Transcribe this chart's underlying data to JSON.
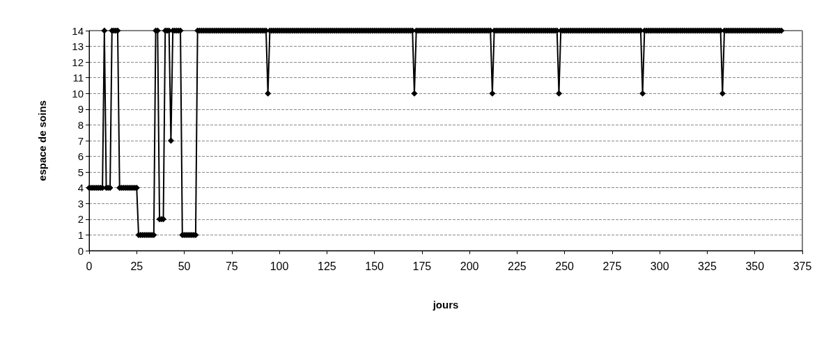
{
  "chart_data": {
    "type": "line",
    "xlabel": "jours",
    "ylabel": "espace de soins",
    "xlim": [
      0,
      375
    ],
    "xticks": [
      0,
      25,
      50,
      75,
      100,
      125,
      150,
      175,
      200,
      225,
      250,
      275,
      300,
      325,
      350,
      375
    ],
    "ylim": [
      0,
      14
    ],
    "yticks": [
      0,
      1,
      2,
      3,
      4,
      5,
      6,
      7,
      8,
      9,
      10,
      11,
      12,
      13,
      14
    ],
    "grid": "y",
    "marker": "diamond",
    "line_style": "solid",
    "series": [
      {
        "color": "#000000",
        "x": [
          0,
          1,
          2,
          3,
          4,
          5,
          6,
          7,
          8,
          9,
          10,
          11,
          12,
          13,
          14,
          15,
          16,
          17,
          18,
          19,
          20,
          21,
          22,
          23,
          24,
          25,
          26,
          27,
          28,
          29,
          30,
          31,
          32,
          33,
          34,
          35,
          36,
          37,
          38,
          39,
          40,
          41,
          42,
          43,
          44,
          45,
          46,
          47,
          48,
          49,
          50,
          51,
          52,
          53,
          54,
          55,
          56,
          57,
          58,
          59,
          60,
          61,
          62,
          63,
          64,
          65,
          66,
          67,
          68,
          69,
          70,
          71,
          72,
          73,
          74,
          75,
          76,
          77,
          78,
          79,
          80,
          81,
          82,
          83,
          84,
          85,
          86,
          87,
          88,
          89,
          90,
          91,
          92,
          93,
          94,
          95,
          96,
          97,
          98,
          99,
          100,
          101,
          102,
          103,
          104,
          105,
          106,
          107,
          108,
          109,
          110,
          111,
          112,
          113,
          114,
          115,
          116,
          117,
          118,
          119,
          120,
          121,
          122,
          123,
          124,
          125,
          126,
          127,
          128,
          129,
          130,
          131,
          132,
          133,
          134,
          135,
          136,
          137,
          138,
          139,
          140,
          141,
          142,
          143,
          144,
          145,
          146,
          147,
          148,
          149,
          150,
          151,
          152,
          153,
          154,
          155,
          156,
          157,
          158,
          159,
          160,
          161,
          162,
          163,
          164,
          165,
          166,
          167,
          168,
          169,
          170,
          171,
          172,
          173,
          174,
          175,
          176,
          177,
          178,
          179,
          180,
          181,
          182,
          183,
          184,
          185,
          186,
          187,
          188,
          189,
          190,
          191,
          192,
          193,
          194,
          195,
          196,
          197,
          198,
          199,
          200,
          201,
          202,
          203,
          204,
          205,
          206,
          207,
          208,
          209,
          210,
          211,
          212,
          213,
          214,
          215,
          216,
          217,
          218,
          219,
          220,
          221,
          222,
          223,
          224,
          225,
          226,
          227,
          228,
          229,
          230,
          231,
          232,
          233,
          234,
          235,
          236,
          237,
          238,
          239,
          240,
          241,
          242,
          243,
          244,
          245,
          246,
          247,
          248,
          249,
          250,
          251,
          252,
          253,
          254,
          255,
          256,
          257,
          258,
          259,
          260,
          261,
          262,
          263,
          264,
          265,
          266,
          267,
          268,
          269,
          270,
          271,
          272,
          273,
          274,
          275,
          276,
          277,
          278,
          279,
          280,
          281,
          282,
          283,
          284,
          285,
          286,
          287,
          288,
          289,
          290,
          291,
          292,
          293,
          294,
          295,
          296,
          297,
          298,
          299,
          300,
          301,
          302,
          303,
          304,
          305,
          306,
          307,
          308,
          309,
          310,
          311,
          312,
          313,
          314,
          315,
          316,
          317,
          318,
          319,
          320,
          321,
          322,
          323,
          324,
          325,
          326,
          327,
          328,
          329,
          330,
          331,
          332,
          333,
          334,
          335,
          336,
          337,
          338,
          339,
          340,
          341,
          342,
          343,
          344,
          345,
          346,
          347,
          348,
          349,
          350,
          351,
          352,
          353,
          354,
          355,
          356,
          357,
          358,
          359,
          360,
          361,
          362,
          363,
          364
        ],
        "values": [
          4,
          4,
          4,
          4,
          4,
          4,
          4,
          4,
          14,
          4,
          4,
          4,
          14,
          14,
          14,
          14,
          4,
          4,
          4,
          4,
          4,
          4,
          4,
          4,
          4,
          4,
          1,
          1,
          1,
          1,
          1,
          1,
          1,
          1,
          1,
          14,
          14,
          2,
          2,
          2,
          14,
          14,
          14,
          7,
          14,
          14,
          14,
          14,
          14,
          1,
          1,
          1,
          1,
          1,
          1,
          1,
          1,
          14,
          14,
          14,
          14,
          14,
          14,
          14,
          14,
          14,
          14,
          14,
          14,
          14,
          14,
          14,
          14,
          14,
          14,
          14,
          14,
          14,
          14,
          14,
          14,
          14,
          14,
          14,
          14,
          14,
          14,
          14,
          14,
          14,
          14,
          14,
          14,
          14,
          10,
          14,
          14,
          14,
          14,
          14,
          14,
          14,
          14,
          14,
          14,
          14,
          14,
          14,
          14,
          14,
          14,
          14,
          14,
          14,
          14,
          14,
          14,
          14,
          14,
          14,
          14,
          14,
          14,
          14,
          14,
          14,
          14,
          14,
          14,
          14,
          14,
          14,
          14,
          14,
          14,
          14,
          14,
          14,
          14,
          14,
          14,
          14,
          14,
          14,
          14,
          14,
          14,
          14,
          14,
          14,
          14,
          14,
          14,
          14,
          14,
          14,
          14,
          14,
          14,
          14,
          14,
          14,
          14,
          14,
          14,
          14,
          14,
          14,
          14,
          14,
          14,
          10,
          14,
          14,
          14,
          14,
          14,
          14,
          14,
          14,
          14,
          14,
          14,
          14,
          14,
          14,
          14,
          14,
          14,
          14,
          14,
          14,
          14,
          14,
          14,
          14,
          14,
          14,
          14,
          14,
          14,
          14,
          14,
          14,
          14,
          14,
          14,
          14,
          14,
          14,
          14,
          14,
          10,
          14,
          14,
          14,
          14,
          14,
          14,
          14,
          14,
          14,
          14,
          14,
          14,
          14,
          14,
          14,
          14,
          14,
          14,
          14,
          14,
          14,
          14,
          14,
          14,
          14,
          14,
          14,
          14,
          14,
          14,
          14,
          14,
          14,
          14,
          10,
          14,
          14,
          14,
          14,
          14,
          14,
          14,
          14,
          14,
          14,
          14,
          14,
          14,
          14,
          14,
          14,
          14,
          14,
          14,
          14,
          14,
          14,
          14,
          14,
          14,
          14,
          14,
          14,
          14,
          14,
          14,
          14,
          14,
          14,
          14,
          14,
          14,
          14,
          14,
          14,
          14,
          14,
          14,
          10,
          14,
          14,
          14,
          14,
          14,
          14,
          14,
          14,
          14,
          14,
          14,
          14,
          14,
          14,
          14,
          14,
          14,
          14,
          14,
          14,
          14,
          14,
          14,
          14,
          14,
          14,
          14,
          14,
          14,
          14,
          14,
          14,
          14,
          14,
          14,
          14,
          14,
          14,
          14,
          14,
          14,
          10,
          14,
          14,
          14,
          14,
          14,
          14,
          14,
          14,
          14,
          14,
          14,
          14,
          14,
          14,
          14,
          14,
          14,
          14,
          14,
          14,
          14,
          14,
          14,
          14,
          14,
          14,
          14,
          14,
          14,
          14,
          14
        ]
      }
    ]
  }
}
